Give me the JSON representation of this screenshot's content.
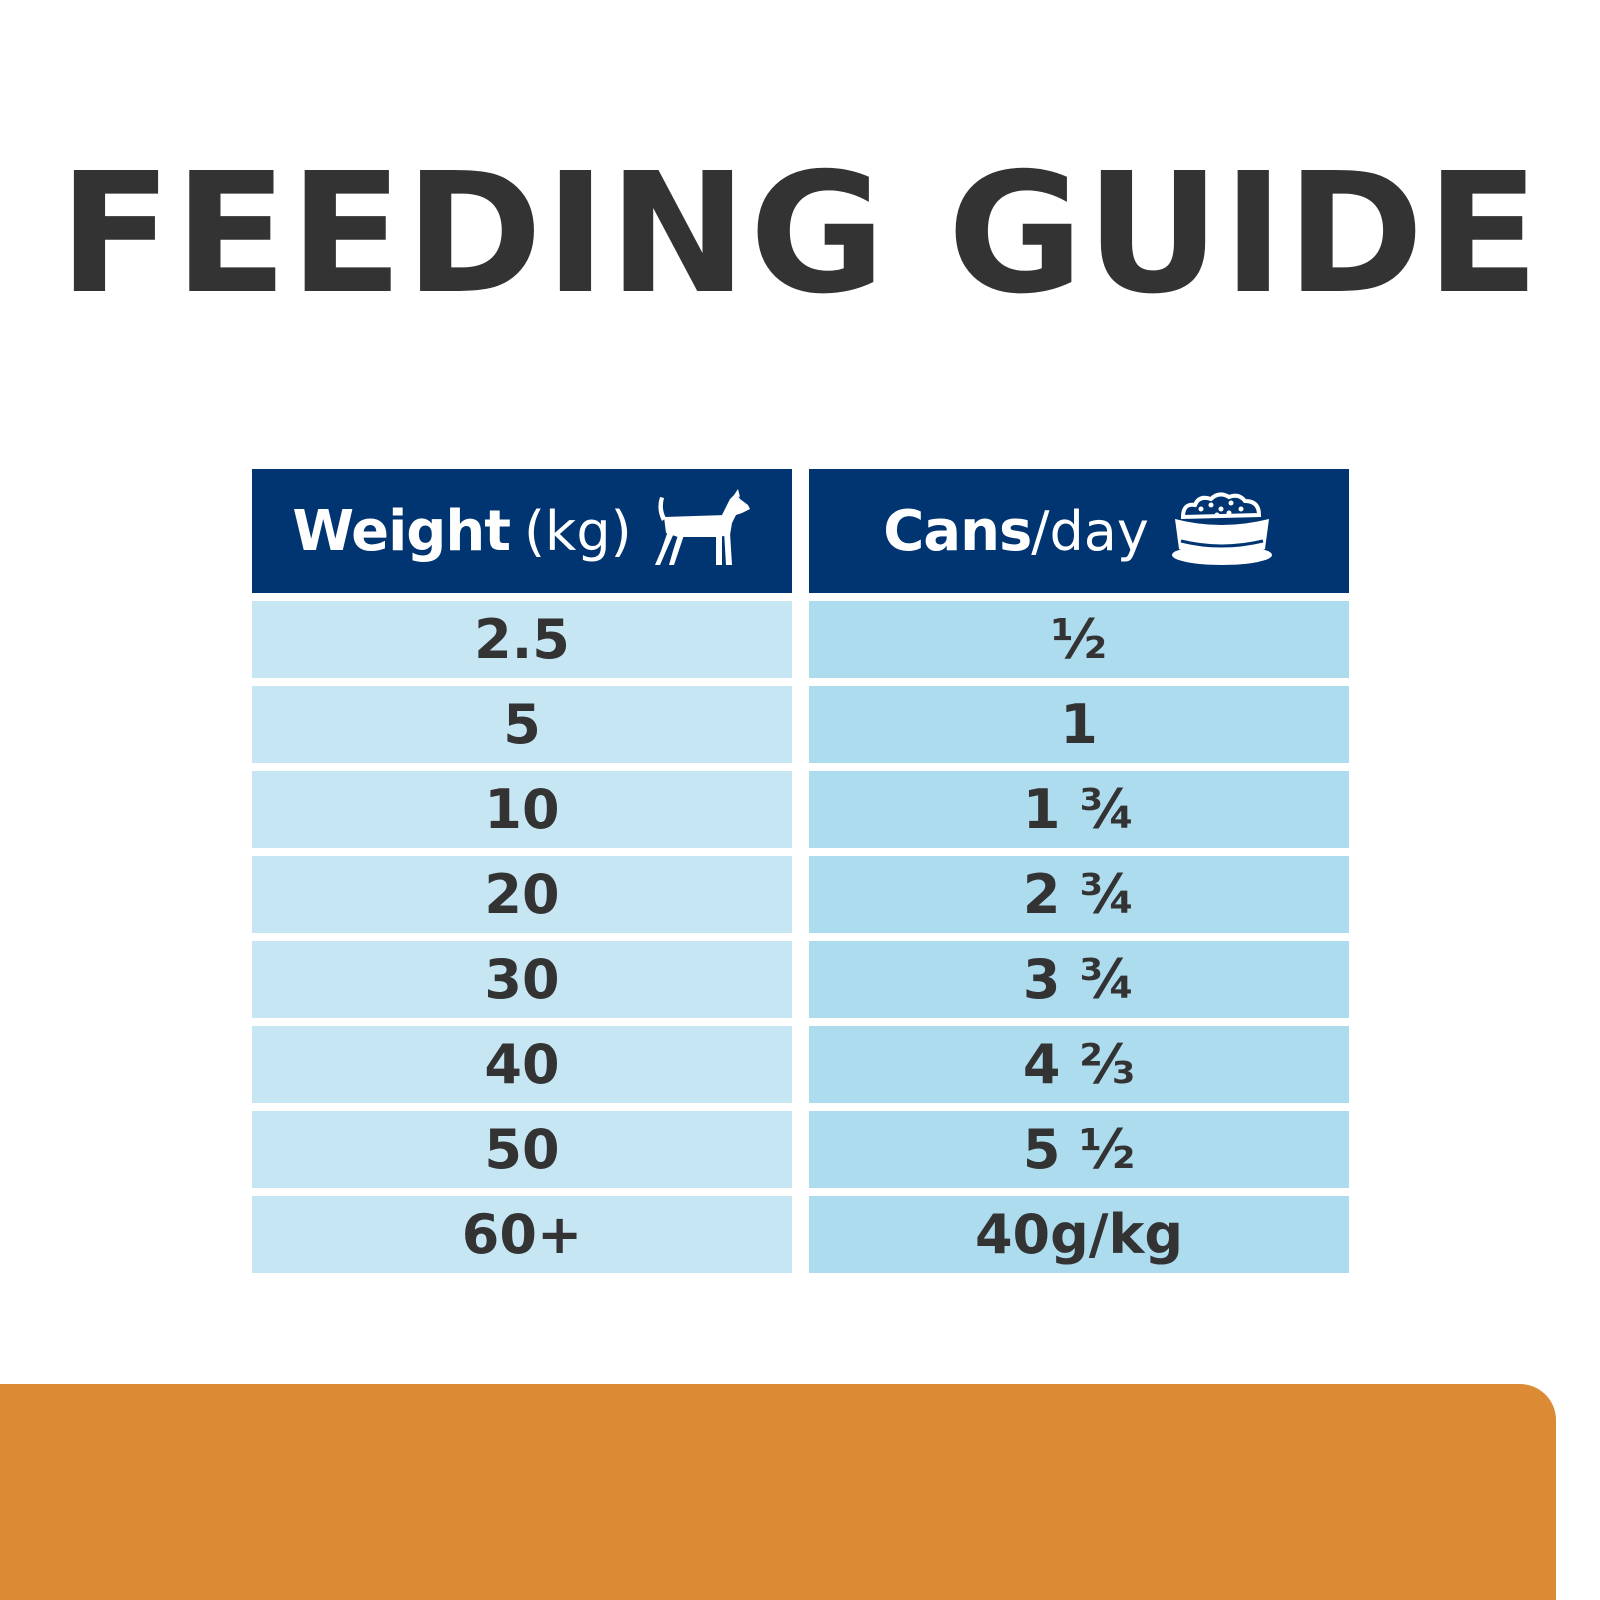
{
  "title": "FEEDING GUIDE",
  "table": {
    "weight_header": {
      "strong": "Weight",
      "light": "(kg)",
      "icon": "dog-icon"
    },
    "cans_header": {
      "strong": "Cans",
      "light": "/day",
      "icon": "food-bowl-icon"
    },
    "rows": [
      {
        "weight": "2.5",
        "cans": "½"
      },
      {
        "weight": "5",
        "cans": "1"
      },
      {
        "weight": "10",
        "cans": "1 ¾"
      },
      {
        "weight": "20",
        "cans": "2 ¾"
      },
      {
        "weight": "30",
        "cans": "3 ¾"
      },
      {
        "weight": "40",
        "cans": "4 ⅔"
      },
      {
        "weight": "50",
        "cans": "5 ½"
      },
      {
        "weight": "60+",
        "cans": "40g/kg"
      }
    ]
  },
  "colors": {
    "title": "#333333",
    "header_bg": "#003572",
    "weight_cell_bg": "#c7e6f4",
    "cans_cell_bg": "#aedcef",
    "footer_bar": "#dc8b35"
  }
}
